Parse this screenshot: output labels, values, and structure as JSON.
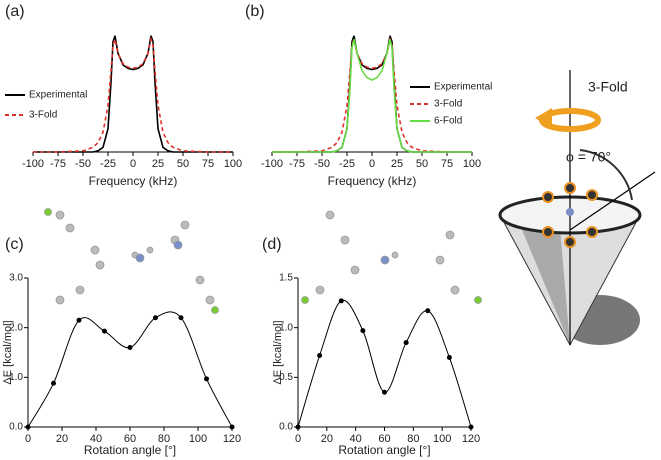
{
  "chart_data": [
    {
      "type": "line",
      "panel_label": "(a)",
      "xlabel": "Frequency (kHz)",
      "xlim": [
        -100,
        100
      ],
      "xticks": [
        -100,
        -75,
        -50,
        -25,
        0,
        25,
        50,
        75,
        100
      ],
      "ylim": [
        0,
        1.05
      ],
      "x": [
        -100,
        -75,
        -50,
        -40,
        -35,
        -30,
        -25,
        -22,
        -20,
        -18,
        -15,
        -10,
        -5,
        0,
        5,
        10,
        15,
        18,
        20,
        22,
        25,
        30,
        35,
        40,
        50,
        75,
        100
      ],
      "series": [
        {
          "name": "Experimental",
          "color": "#000000",
          "dash": false,
          "values": [
            0,
            0,
            0,
            0,
            0.01,
            0.04,
            0.2,
            0.6,
            0.95,
            1.0,
            0.85,
            0.75,
            0.72,
            0.71,
            0.72,
            0.75,
            0.85,
            1.0,
            0.95,
            0.6,
            0.2,
            0.04,
            0.01,
            0,
            0,
            0,
            0
          ]
        },
        {
          "name": "3-Fold",
          "color": "#e0302a",
          "dash": true,
          "values": [
            0,
            0,
            0.01,
            0.04,
            0.08,
            0.17,
            0.4,
            0.7,
            0.92,
            0.97,
            0.85,
            0.76,
            0.73,
            0.72,
            0.73,
            0.76,
            0.85,
            0.97,
            0.92,
            0.7,
            0.4,
            0.17,
            0.08,
            0.04,
            0.01,
            0,
            0
          ]
        }
      ]
    },
    {
      "type": "line",
      "panel_label": "(b)",
      "xlabel": "Frequency (kHz)",
      "xlim": [
        -100,
        100
      ],
      "xticks": [
        -100,
        -75,
        -50,
        -25,
        0,
        25,
        50,
        75,
        100
      ],
      "ylim": [
        0,
        1.05
      ],
      "x": [
        -100,
        -75,
        -50,
        -40,
        -35,
        -30,
        -25,
        -22,
        -20,
        -18,
        -15,
        -10,
        -5,
        0,
        5,
        10,
        15,
        18,
        20,
        22,
        25,
        30,
        35,
        40,
        50,
        75,
        100
      ],
      "series": [
        {
          "name": "Experimental",
          "color": "#000000",
          "dash": false,
          "values": [
            0,
            0,
            0,
            0,
            0.01,
            0.04,
            0.2,
            0.6,
            0.95,
            1.0,
            0.85,
            0.75,
            0.72,
            0.71,
            0.72,
            0.75,
            0.85,
            1.0,
            0.95,
            0.6,
            0.2,
            0.04,
            0.01,
            0,
            0,
            0,
            0
          ]
        },
        {
          "name": "3-Fold",
          "color": "#e0302a",
          "dash": true,
          "values": [
            0,
            0,
            0.01,
            0.04,
            0.08,
            0.17,
            0.4,
            0.7,
            0.92,
            0.97,
            0.85,
            0.76,
            0.73,
            0.72,
            0.73,
            0.76,
            0.85,
            0.97,
            0.92,
            0.7,
            0.4,
            0.17,
            0.08,
            0.04,
            0.01,
            0,
            0
          ]
        },
        {
          "name": "6-Fold",
          "color": "#66dd44",
          "dash": false,
          "values": [
            0,
            0,
            0,
            0,
            0.01,
            0.04,
            0.2,
            0.55,
            0.9,
            0.97,
            0.85,
            0.7,
            0.64,
            0.62,
            0.64,
            0.7,
            0.85,
            0.97,
            0.9,
            0.55,
            0.2,
            0.04,
            0.01,
            0,
            0,
            0,
            0
          ]
        }
      ]
    },
    {
      "type": "energy",
      "panel_label": "(c)",
      "xlabel": "Rotation angle [°]",
      "ylabel": "ΔE [kcal/mol]",
      "xlim": [
        0,
        120
      ],
      "xticks": [
        0,
        20,
        40,
        60,
        80,
        100,
        120
      ],
      "ylim": [
        0,
        3
      ],
      "yticks": [
        {
          "value": 0,
          "label": "0.0"
        },
        {
          "value": 1,
          "label": "1.0"
        },
        {
          "value": 2,
          "label": "2.0"
        },
        {
          "value": 3,
          "label": "3.0"
        }
      ],
      "x": [
        0,
        15,
        30,
        45,
        60,
        75,
        90,
        105,
        120
      ],
      "series": [
        {
          "color": "#000000",
          "values": [
            0,
            0.88,
            2.15,
            1.93,
            1.6,
            2.2,
            2.2,
            0.97,
            0
          ]
        }
      ]
    },
    {
      "type": "energy",
      "panel_label": "(d)",
      "xlabel": "Rotation angle [°]",
      "ylabel": "ΔE [kcal/mol]",
      "xlim": [
        0,
        120
      ],
      "xticks": [
        0,
        20,
        40,
        60,
        80,
        100,
        120
      ],
      "ylim": [
        0,
        1.5
      ],
      "yticks": [
        {
          "value": 0,
          "label": "0.0"
        },
        {
          "value": 0.5,
          "label": "0.5"
        },
        {
          "value": 1,
          "label": "1.0"
        },
        {
          "value": 1.5,
          "label": "1.5"
        }
      ],
      "x": [
        0,
        15,
        30,
        45,
        60,
        75,
        90,
        105,
        120
      ],
      "series": [
        {
          "color": "#000000",
          "values": [
            0,
            0.72,
            1.27,
            0.97,
            0.35,
            0.85,
            1.17,
            0.7,
            0
          ]
        }
      ]
    }
  ],
  "illustration": {
    "axis_label": "3-Fold",
    "angle_label": "ϕ = 70°"
  }
}
